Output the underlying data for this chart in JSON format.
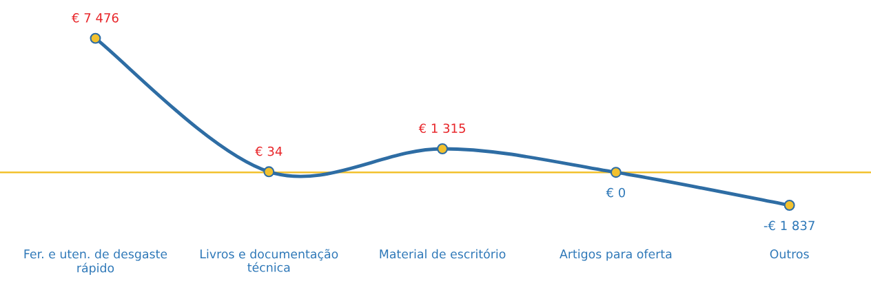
{
  "chart_data": {
    "type": "line",
    "categories": [
      "Fer. e uten. de desgaste\nrápido",
      "Livros e documentação\ntécnica",
      "Material de escritório",
      "Artigos para oferta",
      "Outros"
    ],
    "series": [
      {
        "color": "#2e6da4",
        "values": [
          7476,
          34,
          1315,
          0,
          -1837
        ],
        "value_labels": [
          "€ 7 476",
          "€ 34",
          "€ 1 315",
          "€ 0",
          "-€ 1 837"
        ]
      }
    ],
    "marker": "circle",
    "line_style": "solid",
    "ref_lines": [
      {
        "axis": "y",
        "value": 0,
        "color": "#f2c12e"
      }
    ],
    "grid": false,
    "legend": false
  }
}
